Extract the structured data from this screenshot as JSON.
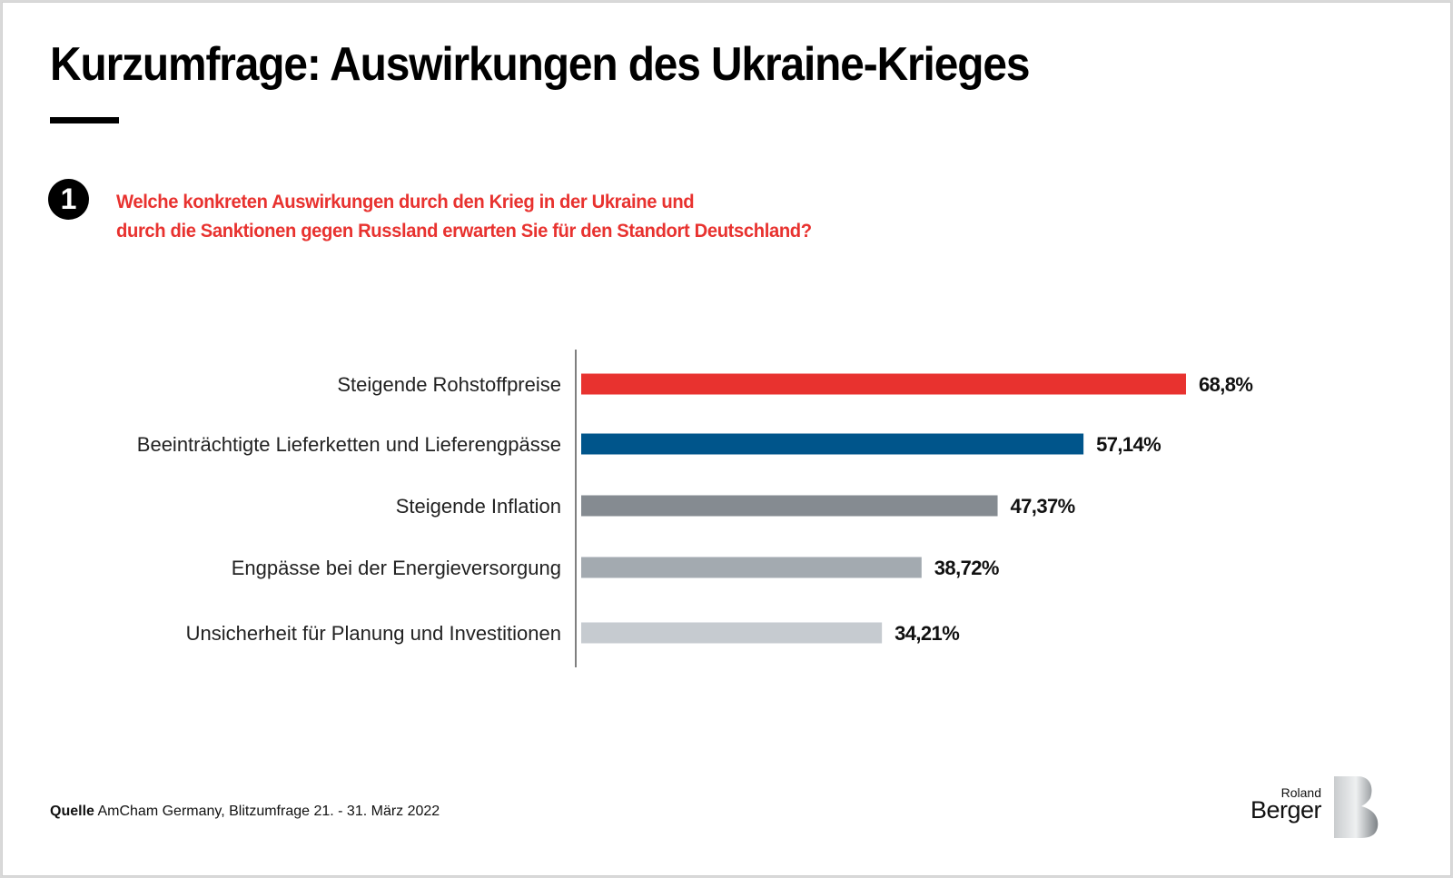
{
  "title": "Kurzumfrage: Auswirkungen des Ukraine-Krieges",
  "question": {
    "number": "1",
    "line1": "Welche konkreten Auswirkungen durch den Krieg in der Ukraine und",
    "line2": "durch die Sanktionen gegen Russland erwarten Sie für den Standort Deutschland?"
  },
  "source": {
    "label": "Quelle",
    "text": "AmCham Germany, Blitzumfrage 21. - 31. März 2022"
  },
  "logo": {
    "line1": "Roland",
    "line2": "Berger"
  },
  "colors": {
    "accent_red": "#e8322f",
    "bar_blue": "#00558b",
    "bar_gray_dark": "#858b91",
    "bar_gray_mid": "#a3aab0",
    "bar_gray_light": "#c6cbd0"
  },
  "chart_data": {
    "type": "bar",
    "orientation": "horizontal",
    "title": "Welche konkreten Auswirkungen durch den Krieg in der Ukraine und durch die Sanktionen gegen Russland erwarten Sie für den Standort Deutschland?",
    "xlabel": "",
    "ylabel": "",
    "xlim": [
      0,
      100
    ],
    "grid": false,
    "legend": "none",
    "categories": [
      "Steigende Rohstoffpreise",
      "Beeinträchtigte Lieferketten und Lieferengpässe",
      "Steigende Inflation",
      "Engpässe bei der Energieversorgung",
      "Unsicherheit für Planung und Investitionen"
    ],
    "values": [
      68.8,
      57.14,
      47.37,
      38.72,
      34.21
    ],
    "value_labels": [
      "68,8%",
      "57,14%",
      "47,37%",
      "38,72%",
      "34,21%"
    ],
    "bar_colors": [
      "#e8322f",
      "#00558b",
      "#858b91",
      "#a3aab0",
      "#c6cbd0"
    ]
  }
}
